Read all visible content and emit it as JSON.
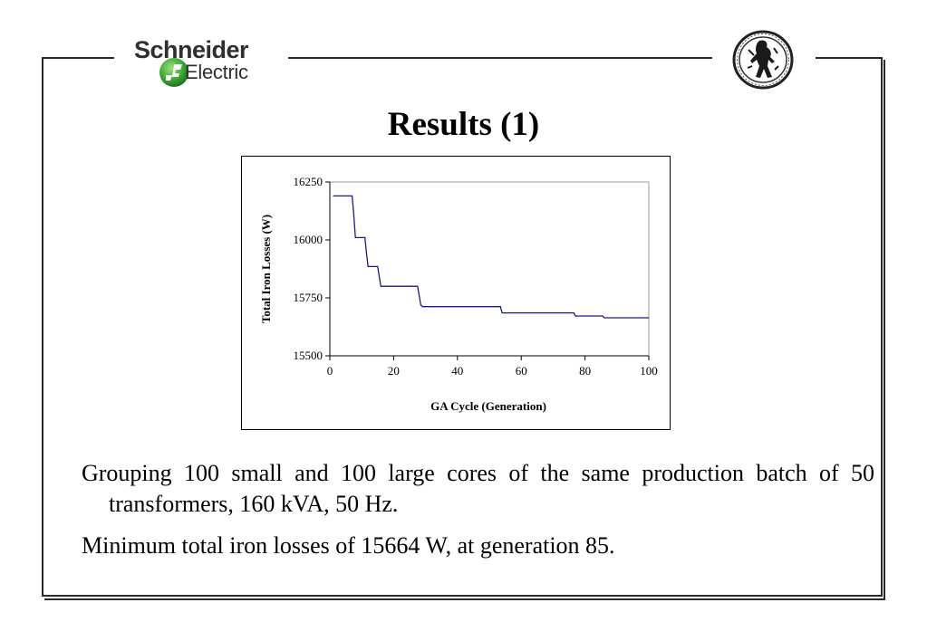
{
  "header": {
    "logo_top": "Schneider",
    "logo_bottom": "Electric"
  },
  "title": "Results (1)",
  "chart_data": {
    "type": "line",
    "title": "",
    "xlabel": "GA Cycle (Generation)",
    "ylabel": "Total Iron Losses (W)",
    "xlim": [
      0,
      100
    ],
    "ylim": [
      15500,
      16250
    ],
    "x_ticks": [
      0,
      20,
      40,
      60,
      80,
      100
    ],
    "y_ticks": [
      15500,
      15750,
      16000,
      16250
    ],
    "line_color": "#1a1a8c",
    "series": [
      {
        "x": [
          1,
          7,
          7.5,
          8,
          8.5,
          11,
          11.5,
          12,
          12.5,
          15,
          15.5,
          16,
          16.5,
          27.5,
          28,
          28.5,
          29,
          29.5,
          53.5,
          54,
          76.5,
          77,
          85.5,
          86,
          100
        ],
        "values": [
          16190,
          16190,
          16110,
          16010,
          16010,
          16010,
          15940,
          15885,
          15885,
          15885,
          15840,
          15800,
          15800,
          15800,
          15760,
          15720,
          15712,
          15712,
          15712,
          15685,
          15685,
          15672,
          15672,
          15664,
          15664
        ]
      }
    ]
  },
  "body": {
    "para_1": "Grouping 100 small and 100 large cores of the same production batch of 50 transformers, 160 kVA, 50 Hz.",
    "para_2": "Minimum total iron losses of 15664 W, at generation 85."
  }
}
